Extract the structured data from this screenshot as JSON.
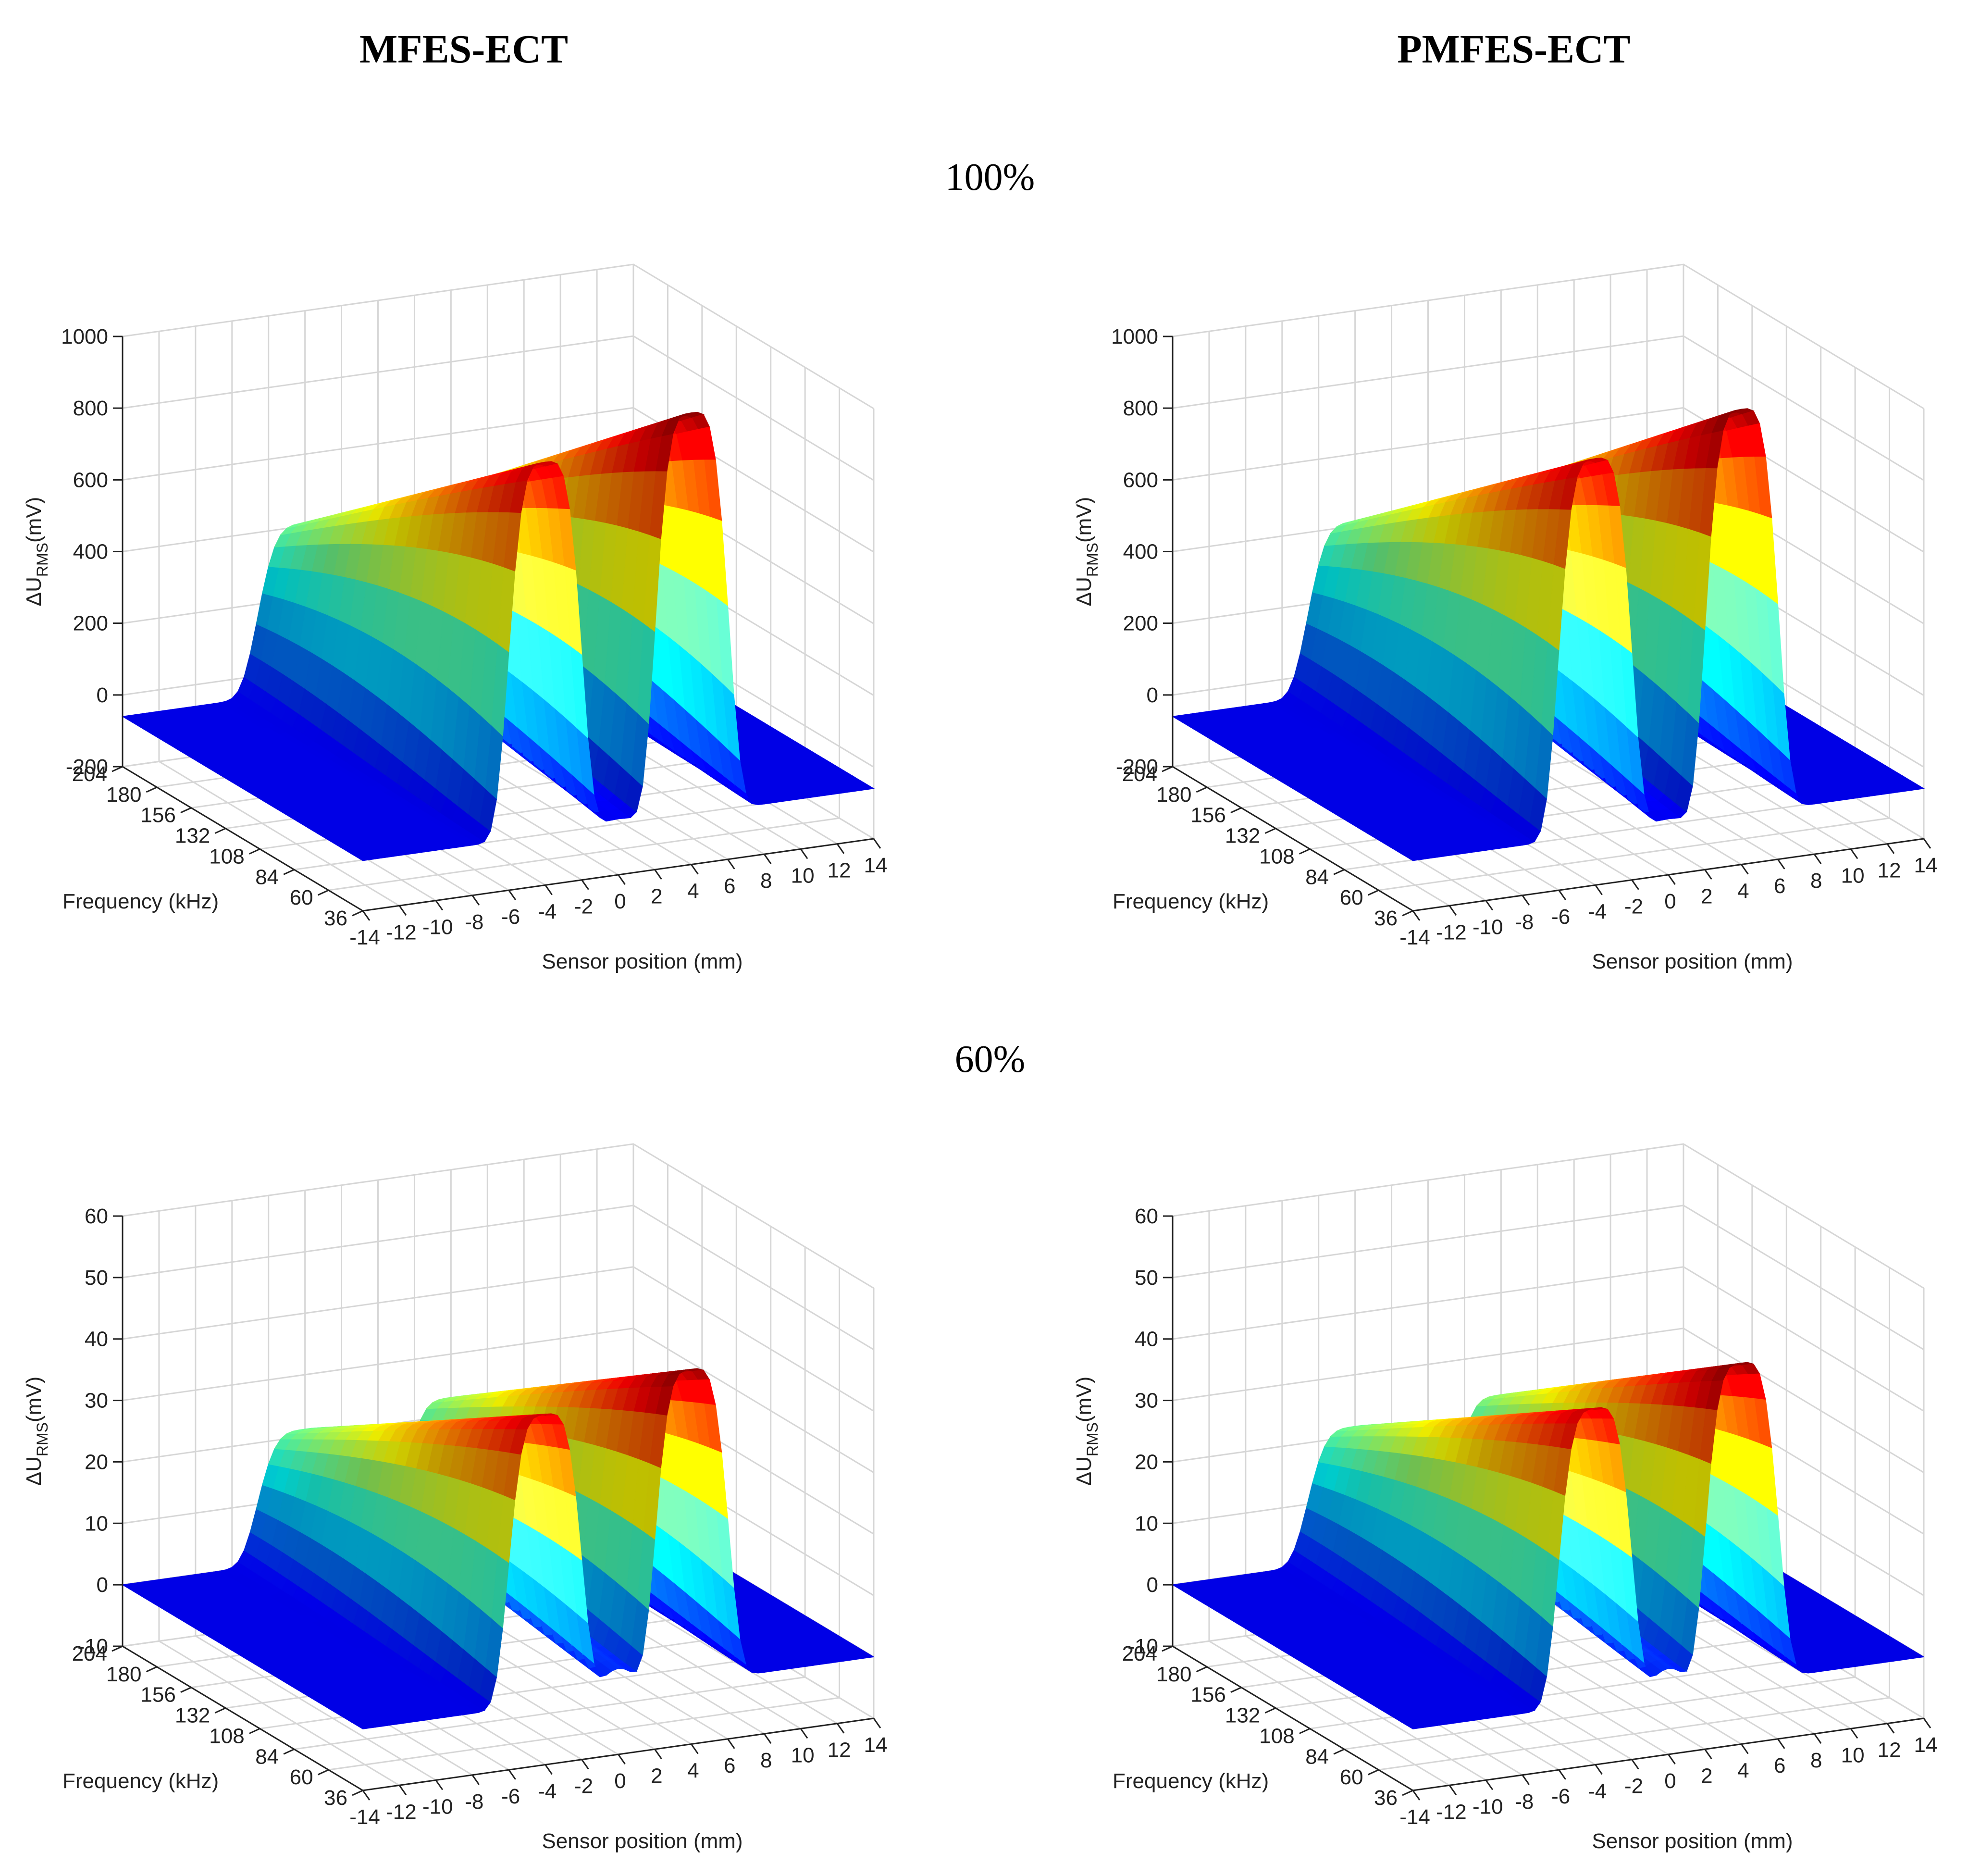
{
  "figure": {
    "col_titles": [
      "MFES-ECT",
      "PMFES-ECT"
    ],
    "row_titles": [
      "100%",
      "60%"
    ]
  },
  "axis_labels": {
    "z_main": "ΔU",
    "z_sub": "RMS",
    "z_unit": "(mV)",
    "x": "Sensor position (mm)",
    "y": "Frequency (kHz)"
  },
  "chart_data": [
    {
      "type": "surface",
      "method": "MFES-ECT",
      "depth": "100%",
      "xlabel": "Sensor position (mm)",
      "ylabel": "Frequency (kHz)",
      "zlabel": "ΔURMS(mV)",
      "x_ticks": [
        -14,
        -12,
        -10,
        -8,
        -6,
        -4,
        -2,
        0,
        2,
        4,
        6,
        8,
        10,
        12,
        14
      ],
      "y_ticks": [
        204,
        180,
        156,
        132,
        108,
        84,
        60,
        36
      ],
      "z_ticks": [
        -200,
        0,
        200,
        400,
        600,
        800,
        1000
      ],
      "xlim": [
        -14,
        14
      ],
      "ylim": [
        36,
        204
      ],
      "zlim": [
        -200,
        1000
      ],
      "peaks": [
        {
          "x": -4,
          "z_max_at_36kHz": 980
        },
        {
          "x": 4,
          "z_max_at_36kHz": 1060
        }
      ],
      "center_dip_z": -40,
      "baseline_z": -60,
      "colormap": "jet"
    },
    {
      "type": "surface",
      "method": "PMFES-ECT",
      "depth": "100%",
      "xlabel": "Sensor position (mm)",
      "ylabel": "Frequency (kHz)",
      "zlabel": "ΔURMS(mV)",
      "x_ticks": [
        -14,
        -12,
        -10,
        -8,
        -6,
        -4,
        -2,
        0,
        2,
        4,
        6,
        8,
        10,
        12,
        14
      ],
      "y_ticks": [
        204,
        180,
        156,
        132,
        108,
        84,
        60,
        36
      ],
      "z_ticks": [
        -200,
        0,
        200,
        400,
        600,
        800,
        1000
      ],
      "xlim": [
        -14,
        14
      ],
      "ylim": [
        36,
        204
      ],
      "zlim": [
        -200,
        1000
      ],
      "peaks": [
        {
          "x": -4,
          "z_max_at_36kHz": 990
        },
        {
          "x": 4,
          "z_max_at_36kHz": 1070
        }
      ],
      "center_dip_z": -40,
      "baseline_z": -60,
      "colormap": "jet"
    },
    {
      "type": "surface",
      "method": "MFES-ECT",
      "depth": "60%",
      "xlabel": "Sensor position (mm)",
      "ylabel": "Frequency (kHz)",
      "zlabel": "ΔURMS(mV)",
      "x_ticks": [
        -14,
        -12,
        -10,
        -8,
        -6,
        -4,
        -2,
        0,
        2,
        4,
        6,
        8,
        10,
        12,
        14
      ],
      "y_ticks": [
        204,
        180,
        156,
        132,
        108,
        84,
        60,
        36
      ],
      "z_ticks": [
        -10,
        0,
        10,
        20,
        30,
        40,
        50,
        60
      ],
      "xlim": [
        -14,
        14
      ],
      "ylim": [
        36,
        204
      ],
      "zlim": [
        -10,
        60
      ],
      "peaks": [
        {
          "x": -4,
          "z_max_at_36kHz": 47
        },
        {
          "x": 4,
          "z_max_at_36kHz": 51
        }
      ],
      "center_dip_z": 5,
      "baseline_z": 0,
      "colormap": "jet"
    },
    {
      "type": "surface",
      "method": "PMFES-ECT",
      "depth": "60%",
      "xlabel": "Sensor position (mm)",
      "ylabel": "Frequency (kHz)",
      "zlabel": "ΔURMS(mV)",
      "x_ticks": [
        -14,
        -12,
        -10,
        -8,
        -6,
        -4,
        -2,
        0,
        2,
        4,
        6,
        8,
        10,
        12,
        14
      ],
      "y_ticks": [
        204,
        180,
        156,
        132,
        108,
        84,
        60,
        36
      ],
      "z_ticks": [
        -10,
        0,
        10,
        20,
        30,
        40,
        50,
        60
      ],
      "xlim": [
        -14,
        14
      ],
      "ylim": [
        36,
        204
      ],
      "zlim": [
        -10,
        60
      ],
      "peaks": [
        {
          "x": -4,
          "z_max_at_36kHz": 48
        },
        {
          "x": 4,
          "z_max_at_36kHz": 52
        }
      ],
      "center_dip_z": 5,
      "baseline_z": 0,
      "colormap": "jet"
    }
  ]
}
